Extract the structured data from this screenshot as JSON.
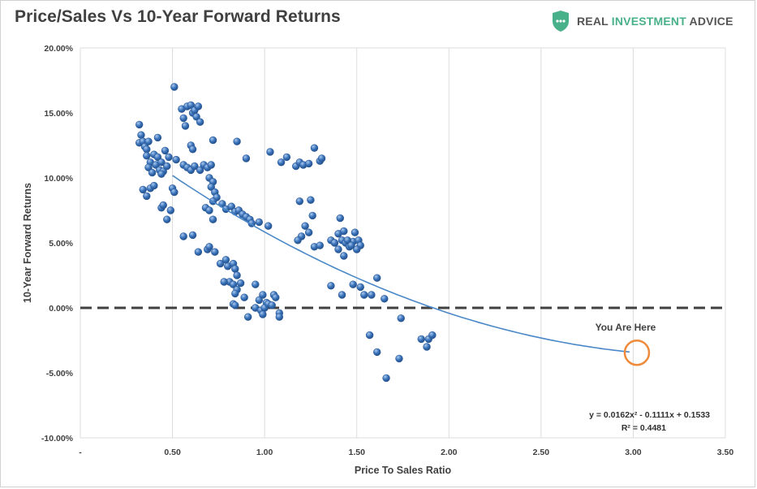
{
  "header": {
    "title": "Price/Sales Vs 10-Year Forward Returns",
    "brand_text_plain": "REAL ",
    "brand_text_accent": "INVESTMENT",
    "brand_text_rest": " ADVICE"
  },
  "colors": {
    "points": "#3b74bb",
    "trendline": "#4a88c7",
    "zero_line": "#404040",
    "marker_circle": "#ef8a3a",
    "brand_green": "#49b189"
  },
  "chart_data": {
    "type": "scatter",
    "title": "Price/Sales Vs 10-Year Forward Returns",
    "xlabel": "Price To Sales Ratio",
    "ylabel": "10-Year Forward Returns",
    "xlim": [
      0,
      3.5
    ],
    "ylim": [
      -0.1,
      0.2
    ],
    "x_ticks": [
      {
        "v": 0,
        "label": "-"
      },
      {
        "v": 0.5,
        "label": "0.50"
      },
      {
        "v": 1.0,
        "label": "1.00"
      },
      {
        "v": 1.5,
        "label": "1.50"
      },
      {
        "v": 2.0,
        "label": "2.00"
      },
      {
        "v": 2.5,
        "label": "2.50"
      },
      {
        "v": 3.0,
        "label": "3.00"
      },
      {
        "v": 3.5,
        "label": "3.50"
      }
    ],
    "y_ticks": [
      {
        "v": -0.1,
        "label": "-10.00%"
      },
      {
        "v": -0.05,
        "label": "-5.00%"
      },
      {
        "v": 0.0,
        "label": "0.00%"
      },
      {
        "v": 0.05,
        "label": "5.00%"
      },
      {
        "v": 0.1,
        "label": "10.00%"
      },
      {
        "v": 0.15,
        "label": "15.00%"
      },
      {
        "v": 0.2,
        "label": "20.00%"
      }
    ],
    "grid": "vertical",
    "zero_line": {
      "y": 0.0,
      "style": "dashed"
    },
    "trendline": {
      "type": "poly2",
      "a": 0.0162,
      "b": -0.1111,
      "c": 0.1533,
      "x_range": [
        0.5,
        2.98
      ],
      "equation": "y = 0.0162x² - 0.1111x + 0.1533",
      "r2": "R² = 0.4481"
    },
    "annotation": {
      "text": "You Are Here",
      "x": 3.02,
      "y": -0.0345
    },
    "points": [
      [
        0.32,
        0.141
      ],
      [
        0.33,
        0.133
      ],
      [
        0.32,
        0.127
      ],
      [
        0.34,
        0.128
      ],
      [
        0.35,
        0.124
      ],
      [
        0.36,
        0.122
      ],
      [
        0.37,
        0.128
      ],
      [
        0.36,
        0.117
      ],
      [
        0.38,
        0.112
      ],
      [
        0.37,
        0.108
      ],
      [
        0.39,
        0.104
      ],
      [
        0.4,
        0.118
      ],
      [
        0.42,
        0.116
      ],
      [
        0.41,
        0.11
      ],
      [
        0.43,
        0.106
      ],
      [
        0.44,
        0.112
      ],
      [
        0.45,
        0.105
      ],
      [
        0.42,
        0.131
      ],
      [
        0.46,
        0.121
      ],
      [
        0.47,
        0.109
      ],
      [
        0.48,
        0.116
      ],
      [
        0.44,
        0.103
      ],
      [
        0.5,
        0.092
      ],
      [
        0.51,
        0.089
      ],
      [
        0.34,
        0.091
      ],
      [
        0.36,
        0.086
      ],
      [
        0.38,
        0.092
      ],
      [
        0.4,
        0.094
      ],
      [
        0.44,
        0.077
      ],
      [
        0.45,
        0.079
      ],
      [
        0.47,
        0.068
      ],
      [
        0.49,
        0.075
      ],
      [
        0.51,
        0.17
      ],
      [
        0.55,
        0.153
      ],
      [
        0.56,
        0.146
      ],
      [
        0.57,
        0.14
      ],
      [
        0.58,
        0.155
      ],
      [
        0.6,
        0.156
      ],
      [
        0.61,
        0.15
      ],
      [
        0.62,
        0.152
      ],
      [
        0.64,
        0.155
      ],
      [
        0.63,
        0.147
      ],
      [
        0.65,
        0.143
      ],
      [
        0.6,
        0.125
      ],
      [
        0.61,
        0.122
      ],
      [
        0.52,
        0.114
      ],
      [
        0.56,
        0.11
      ],
      [
        0.58,
        0.108
      ],
      [
        0.6,
        0.106
      ],
      [
        0.62,
        0.109
      ],
      [
        0.65,
        0.106
      ],
      [
        0.67,
        0.11
      ],
      [
        0.69,
        0.108
      ],
      [
        0.71,
        0.11
      ],
      [
        0.7,
        0.1
      ],
      [
        0.72,
        0.097
      ],
      [
        0.71,
        0.093
      ],
      [
        0.73,
        0.089
      ],
      [
        0.74,
        0.085
      ],
      [
        0.72,
        0.082
      ],
      [
        0.68,
        0.077
      ],
      [
        0.7,
        0.075
      ],
      [
        0.72,
        0.068
      ],
      [
        0.56,
        0.055
      ],
      [
        0.61,
        0.056
      ],
      [
        0.64,
        0.043
      ],
      [
        0.69,
        0.045
      ],
      [
        0.7,
        0.047
      ],
      [
        0.73,
        0.043
      ],
      [
        0.77,
        0.08
      ],
      [
        0.79,
        0.076
      ],
      [
        0.82,
        0.078
      ],
      [
        0.84,
        0.074
      ],
      [
        0.86,
        0.075
      ],
      [
        0.88,
        0.072
      ],
      [
        0.9,
        0.07
      ],
      [
        0.92,
        0.068
      ],
      [
        0.93,
        0.065
      ],
      [
        0.97,
        0.066
      ],
      [
        1.02,
        0.063
      ],
      [
        0.72,
        0.129
      ],
      [
        0.85,
        0.128
      ],
      [
        0.9,
        0.115
      ],
      [
        1.03,
        0.12
      ],
      [
        1.09,
        0.112
      ],
      [
        1.12,
        0.116
      ],
      [
        1.17,
        0.109
      ],
      [
        1.19,
        0.112
      ],
      [
        1.21,
        0.11
      ],
      [
        1.24,
        0.111
      ],
      [
        1.27,
        0.123
      ],
      [
        1.3,
        0.113
      ],
      [
        1.31,
        0.115
      ],
      [
        1.19,
        0.082
      ],
      [
        1.25,
        0.083
      ],
      [
        1.26,
        0.071
      ],
      [
        1.22,
        0.063
      ],
      [
        1.2,
        0.055
      ],
      [
        1.18,
        0.052
      ],
      [
        1.24,
        0.058
      ],
      [
        1.27,
        0.047
      ],
      [
        1.3,
        0.048
      ],
      [
        1.36,
        0.052
      ],
      [
        1.38,
        0.05
      ],
      [
        1.4,
        0.057
      ],
      [
        1.41,
        0.069
      ],
      [
        1.43,
        0.059
      ],
      [
        1.42,
        0.052
      ],
      [
        1.44,
        0.05
      ],
      [
        1.46,
        0.047
      ],
      [
        1.48,
        0.051
      ],
      [
        1.49,
        0.058
      ],
      [
        1.51,
        0.052
      ],
      [
        1.52,
        0.048
      ],
      [
        1.5,
        0.045
      ],
      [
        1.45,
        0.052
      ],
      [
        1.47,
        0.048
      ],
      [
        1.43,
        0.04
      ],
      [
        1.4,
        0.045
      ],
      [
        1.36,
        0.017
      ],
      [
        1.42,
        0.01
      ],
      [
        1.48,
        0.018
      ],
      [
        1.52,
        0.016
      ],
      [
        1.54,
        0.01
      ],
      [
        1.58,
        0.01
      ],
      [
        1.61,
        0.023
      ],
      [
        1.65,
        0.007
      ],
      [
        0.79,
        0.037
      ],
      [
        0.8,
        0.032
      ],
      [
        0.83,
        0.034
      ],
      [
        0.84,
        0.03
      ],
      [
        0.85,
        0.025
      ],
      [
        0.81,
        0.02
      ],
      [
        0.83,
        0.018
      ],
      [
        0.85,
        0.014
      ],
      [
        0.84,
        0.011
      ],
      [
        0.87,
        0.019
      ],
      [
        0.89,
        0.008
      ],
      [
        0.95,
        0.018
      ],
      [
        0.97,
        0.006
      ],
      [
        0.99,
        0.01
      ],
      [
        1.01,
        0.004
      ],
      [
        1.05,
        0.01
      ],
      [
        1.06,
        0.008
      ],
      [
        0.83,
        0.003
      ],
      [
        0.84,
        0.002
      ],
      [
        0.95,
        0.0
      ],
      [
        0.98,
        -0.002
      ],
      [
        1.0,
        0.0
      ],
      [
        1.02,
        0.003
      ],
      [
        1.04,
        0.002
      ],
      [
        0.91,
        -0.007
      ],
      [
        0.99,
        -0.005
      ],
      [
        1.08,
        -0.004
      ],
      [
        1.08,
        -0.007
      ],
      [
        1.57,
        -0.021
      ],
      [
        1.61,
        -0.034
      ],
      [
        1.74,
        -0.008
      ],
      [
        1.66,
        -0.054
      ],
      [
        1.73,
        -0.039
      ],
      [
        1.85,
        -0.024
      ],
      [
        1.89,
        -0.024
      ],
      [
        1.88,
        -0.03
      ],
      [
        1.91,
        -0.021
      ],
      [
        0.78,
        0.02
      ],
      [
        0.76,
        0.034
      ]
    ]
  }
}
